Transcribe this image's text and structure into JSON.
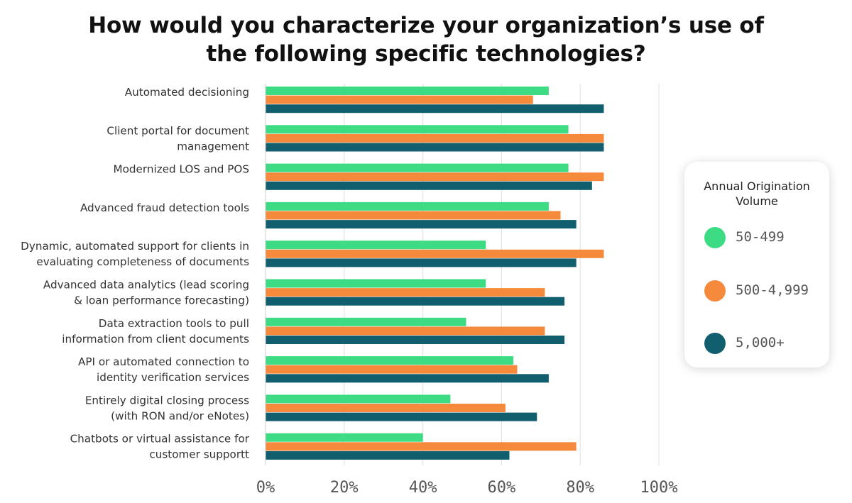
{
  "chart_data": {
    "type": "bar",
    "orientation": "horizontal",
    "title_lines": [
      "How would you characterize your organization’s use of",
      "the following specific technologies?"
    ],
    "categories": [
      [
        "Automated decisioning"
      ],
      [
        "Client portal for document",
        "management"
      ],
      [
        "Modernized LOS and POS"
      ],
      [
        "Advanced fraud detection tools"
      ],
      [
        "Dynamic, automated support for clients in",
        "evaluating completeness of documents"
      ],
      [
        "Advanced data analytics (lead scoring",
        "& loan performance forecasting)"
      ],
      [
        "Data extraction tools to pull",
        "information from client documents"
      ],
      [
        "API or automated connection to",
        "identity verification services"
      ],
      [
        "Entirely digital closing process",
        "(with RON and/or eNotes)"
      ],
      [
        "Chatbots or virtual assistance for",
        "customer supportt"
      ]
    ],
    "series": [
      {
        "name": "50-499",
        "color": "#3ddc84",
        "values": [
          72,
          77,
          77,
          72,
          56,
          56,
          51,
          63,
          47,
          40
        ]
      },
      {
        "name": "500-4,999",
        "color": "#f58a3c",
        "values": [
          68,
          86,
          86,
          75,
          86,
          71,
          71,
          64,
          61,
          79
        ]
      },
      {
        "name": "5,000+",
        "color": "#115e6e",
        "values": [
          86,
          86,
          83,
          79,
          79,
          76,
          76,
          72,
          69,
          62
        ]
      }
    ],
    "xlim": [
      0,
      100
    ],
    "xticks": [
      "0%",
      "20%",
      "40%",
      "60%",
      "80%",
      "100%"
    ],
    "legend": {
      "title_lines": [
        "Annual Origination",
        "Volume"
      ],
      "placement": "right"
    },
    "grid": true
  }
}
